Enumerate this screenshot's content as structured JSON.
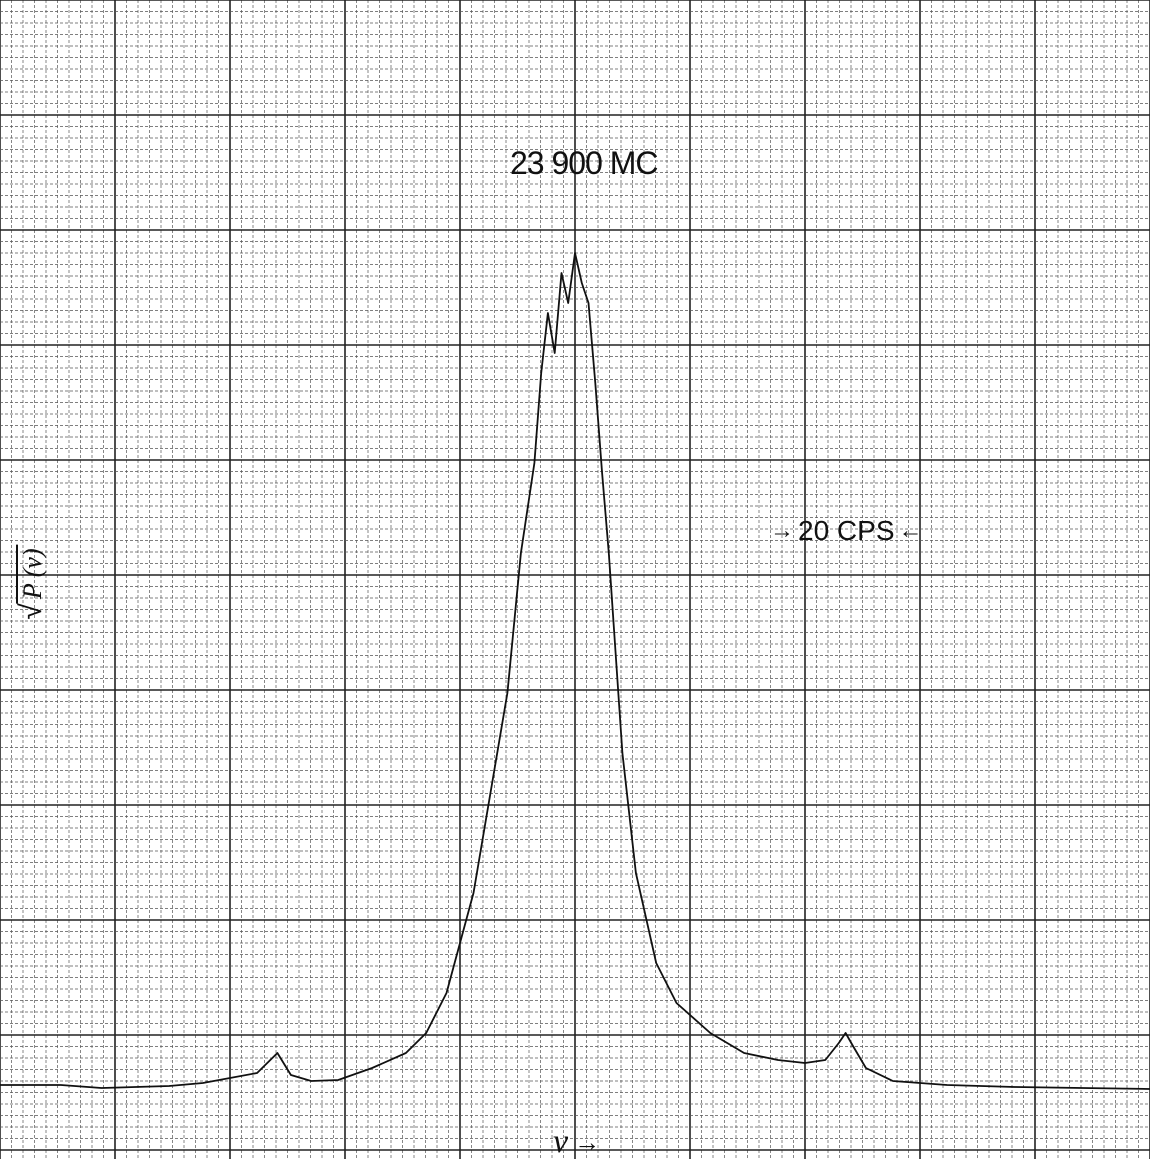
{
  "chart_data": {
    "type": "line",
    "title": "",
    "xlabel": "ν",
    "x_arrow": "→",
    "ylabel": "P (ν)",
    "ylabel_radical": "√",
    "annotations": {
      "peak_label": "23 900 MC",
      "span_label": "20 CPS",
      "span_arrow_left": "→",
      "span_arrow_right": "←"
    },
    "grid": true,
    "xlim": [
      -85,
      85
    ],
    "ylim": [
      0,
      1.0
    ],
    "series": [
      {
        "x": [
          -85,
          -76,
          -70,
          -60,
          -55,
          -47,
          -44,
          -42,
          -39,
          -35,
          -30,
          -25,
          -22,
          -19,
          -15,
          -10,
          -8,
          -6,
          -5,
          -4,
          -3,
          -2,
          -1,
          0,
          1,
          2,
          3,
          4,
          5,
          7,
          9,
          12,
          15,
          20,
          25,
          30,
          34,
          37,
          39,
          40,
          41,
          43,
          47,
          55,
          65,
          75,
          85
        ],
        "y": [
          0.008,
          0.008,
          0.005,
          0.007,
          0.01,
          0.02,
          0.04,
          0.018,
          0.012,
          0.013,
          0.025,
          0.04,
          0.06,
          0.1,
          0.2,
          0.4,
          0.54,
          0.63,
          0.72,
          0.78,
          0.74,
          0.82,
          0.79,
          0.84,
          0.81,
          0.79,
          0.71,
          0.62,
          0.54,
          0.34,
          0.22,
          0.13,
          0.09,
          0.06,
          0.04,
          0.033,
          0.03,
          0.033,
          0.05,
          0.06,
          0.048,
          0.025,
          0.012,
          0.008,
          0.006,
          0.005,
          0.004
        ]
      }
    ]
  }
}
